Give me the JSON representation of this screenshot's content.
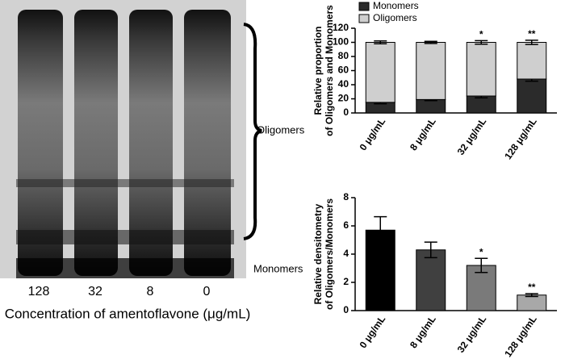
{
  "gel": {
    "band_labels": [
      "Oligomers",
      "Monomers"
    ],
    "lane_labels": [
      "128",
      "32",
      "8",
      "0"
    ],
    "xlabel": "Concentration of amentoflavone (μg/mL)"
  },
  "chart_data": [
    {
      "type": "stacked_bar",
      "ylabel": [
        "Relative proportion",
        "of Oligomers and Monomers"
      ],
      "categories": [
        "0 μg/mL",
        "8 μg/mL",
        "32 μg/mL",
        "128 μg/mL"
      ],
      "series": [
        {
          "name": "Monomers",
          "color": "#2b2b2b",
          "values": [
            15,
            19,
            24,
            48
          ],
          "errors": [
            2,
            1.5,
            2.5,
            3
          ]
        },
        {
          "name": "Oligomers",
          "color": "#cfcfcf",
          "values": [
            85,
            81,
            76,
            52
          ],
          "errors": [
            2,
            1.5,
            2.5,
            3
          ]
        }
      ],
      "annotations": [
        null,
        null,
        "*",
        "**"
      ],
      "ylim": [
        0,
        120
      ],
      "yticks": [
        0,
        20,
        40,
        60,
        80,
        100,
        120
      ],
      "legend": "top-left"
    },
    {
      "type": "bar",
      "ylabel": [
        "Relative densitometry",
        "of Oligomers/Monomers"
      ],
      "categories": [
        "0 μg/mL",
        "8 μg/mL",
        "32 μg/mL",
        "128 μg/mL"
      ],
      "values": [
        5.7,
        4.3,
        3.2,
        1.1
      ],
      "errors": [
        0.95,
        0.55,
        0.5,
        0.1
      ],
      "colors": [
        "#000000",
        "#404040",
        "#7a7a7a",
        "#a8a8a8"
      ],
      "annotations": [
        null,
        null,
        "*",
        "**"
      ],
      "ylim": [
        0,
        8
      ],
      "yticks": [
        0,
        2,
        4,
        6,
        8
      ]
    }
  ]
}
